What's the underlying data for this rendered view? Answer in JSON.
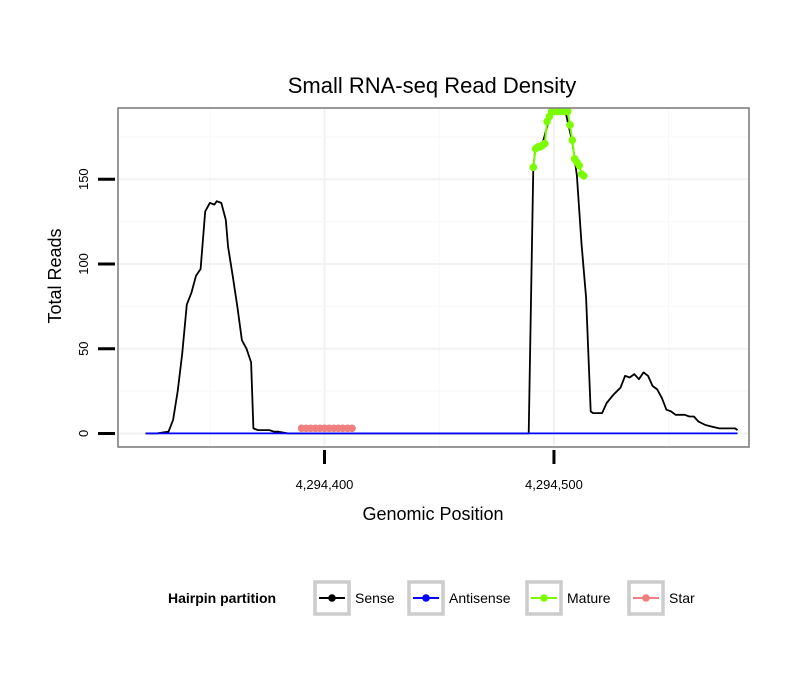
{
  "chart_data": {
    "type": "line",
    "title": "Small RNA-seq Read Density",
    "xlabel": "Genomic Position",
    "ylabel": "Total Reads",
    "xlim": [
      4294310,
      4294585
    ],
    "ylim": [
      -8,
      192
    ],
    "x_ticks": [
      {
        "value": 4294400,
        "label": "4,294,400"
      },
      {
        "value": 4294500,
        "label": "4,294,500"
      }
    ],
    "y_ticks": [
      {
        "value": 0,
        "label": "0"
      },
      {
        "value": 50,
        "label": "50"
      },
      {
        "value": 100,
        "label": "100"
      },
      {
        "value": 150,
        "label": "150"
      }
    ],
    "grid": true,
    "legend": {
      "title": "Hairpin partition",
      "position": "bottom",
      "entries": [
        {
          "name": "Sense",
          "color": "#000000"
        },
        {
          "name": "Antisense",
          "color": "#0000ff"
        },
        {
          "name": "Mature",
          "color": "#7cfc00"
        },
        {
          "name": "Star",
          "color": "#f08080"
        }
      ]
    },
    "series": [
      {
        "name": "Sense",
        "color": "#000000",
        "markers": false,
        "x": [
          4294322,
          4294327,
          4294332,
          4294334,
          4294336,
          4294338,
          4294340,
          4294342,
          4294344,
          4294346,
          4294348,
          4294350,
          4294352,
          4294353,
          4294355,
          4294357,
          4294358,
          4294360,
          4294362,
          4294364,
          4294366,
          4294368,
          4294369,
          4294371,
          4294373,
          4294375,
          4294376,
          4294378,
          4294380,
          4294384,
          4294390,
          4294410,
          4294489,
          4294491,
          4294492,
          4294495,
          4294498,
          4294500,
          4294502,
          4294505,
          4294508,
          4294510,
          4294512,
          4294514,
          4294516,
          4294517,
          4294519,
          4294521,
          4294523,
          4294526,
          4294529,
          4294531,
          4294533,
          4294535,
          4294537,
          4294539,
          4294541,
          4294543,
          4294545,
          4294547,
          4294549,
          4294551,
          4294553,
          4294555,
          4294557,
          4294559,
          4294561,
          4294563,
          4294566,
          4294569,
          4294572,
          4294575,
          4294576,
          4294578,
          4294579,
          4294580
        ],
        "y": [
          0,
          0,
          1,
          8,
          25,
          47,
          76,
          83,
          93,
          97,
          131,
          136,
          135,
          137,
          136,
          126,
          110,
          93,
          75,
          55,
          50,
          42,
          3,
          2,
          2,
          2,
          2,
          1,
          1,
          0,
          0,
          0,
          0,
          157,
          169,
          171,
          186,
          190,
          190,
          190,
          172,
          152,
          112,
          80,
          13,
          12,
          12,
          12,
          18,
          23,
          27,
          34,
          33,
          35,
          32,
          36,
          34,
          28,
          26,
          21,
          14,
          13,
          11,
          11,
          11,
          10,
          10,
          7,
          5,
          4,
          3,
          3,
          3,
          3,
          3,
          2
        ]
      },
      {
        "name": "Antisense",
        "color": "#0000ff",
        "markers": false,
        "x": [
          4294322,
          4294580
        ],
        "y": [
          0,
          0
        ]
      },
      {
        "name": "Mature",
        "color": "#7cfc00",
        "markers": true,
        "x": [
          4294491,
          4294492,
          4294493,
          4294494,
          4294495,
          4294496,
          4294497,
          4294498,
          4294499,
          4294500,
          4294501,
          4294502,
          4294503,
          4294504,
          4294505,
          4294506,
          4294507,
          4294508,
          4294509,
          4294510,
          4294511,
          4294512,
          4294513
        ],
        "y": [
          157,
          168,
          169,
          169,
          170,
          171,
          184,
          187,
          190,
          190,
          190,
          190,
          190,
          190,
          190,
          190,
          182,
          173,
          162,
          160,
          158,
          153,
          152
        ]
      },
      {
        "name": "Star",
        "color": "#f08080",
        "markers": true,
        "x": [
          4294390,
          4294392,
          4294394,
          4294396,
          4294398,
          4294400,
          4294402,
          4294404,
          4294406,
          4294408,
          4294410,
          4294412
        ],
        "y": [
          3,
          3,
          3,
          3,
          3,
          3,
          3,
          3,
          3,
          3,
          3,
          3
        ]
      }
    ]
  }
}
